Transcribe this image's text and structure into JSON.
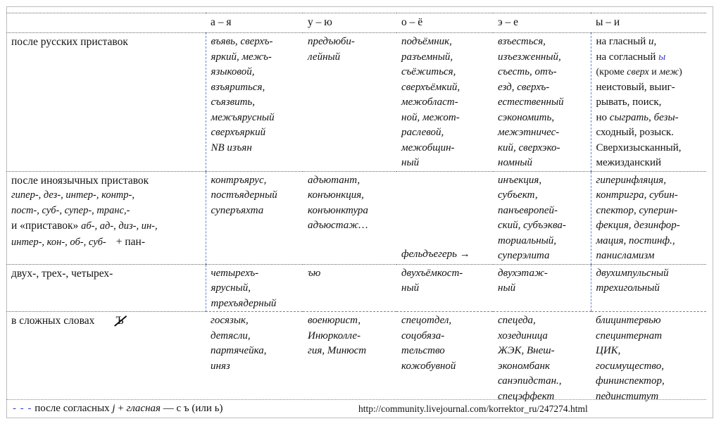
{
  "header": {
    "col_a": "а – я",
    "col_u": "у – ю",
    "col_o": "о – ё",
    "col_e": "э – е",
    "col_y": "ы – и"
  },
  "rows": {
    "russian": {
      "label": "после русских приставок",
      "a": [
        "въявь, сверхъ-",
        "яркий, межъ-",
        "языковой,",
        "взъяриться,",
        "съязвить,",
        "межъярусный",
        "сверхъяркий",
        "NB изъян"
      ],
      "u": [
        "предъюби-",
        "лейный"
      ],
      "o": [
        "подъёмник,",
        "разъемный,",
        "съёжиться,",
        "сверхъёмкий,",
        "межобласт-",
        "ной, межот-",
        "раслевой,",
        "межобщин-",
        "ный"
      ],
      "e": [
        "взъесться,",
        "изъезженный,",
        "съесть, отъ-",
        "езд, сверхъ-",
        "естественный",
        "сэкономить,",
        "межэтничес-",
        "кий, сверхэко-",
        "номный"
      ],
      "y": {
        "l1_a": "на гласный ",
        "l1_b": "и,",
        "l2_a": "на согласный ",
        "l2_b": "ы",
        "l3_a": "(кроме ",
        "l3_b": "сверх",
        "l3_c": " и ",
        "l3_d": "меж",
        "l3_e": ")",
        "rest": [
          "неистовый, выиг-",
          "рывать, поиск,"
        ],
        "l6_a": "но ",
        "l6_b": "сыграть, безы-",
        "rest2": [
          "сходный, розыск.",
          "Сверхизысканный,",
          "межизданский"
        ]
      }
    },
    "foreign": {
      "label": "после иноязычных приставок",
      "sub1": "гипер-, дез-, интер-, контр-,",
      "sub2": "пост-, суб-, супер-, транс,-",
      "sub3_a": "и «приставок» ",
      "sub3_b": "аб-, ад-, диз-, ин-,",
      "sub4": "интер-, кон-, об-, суб-",
      "sub4_plus": "+ пан-",
      "a": [
        "контръярус,",
        "постъядерный",
        "суперъяхта"
      ],
      "u": [
        "адъютант,",
        "конъюнкция,",
        "конъюнктура",
        "адъюстаж…"
      ],
      "o": "фельдъегерь →",
      "e": [
        "инъекция,",
        "субъект,",
        "панъевропей-",
        "ский, субъэква-",
        "ториальный,",
        "суперэлита"
      ],
      "y": [
        "гиперинфляция,",
        "контригра, субин-",
        "спектор, суперин-",
        "фекция, дезинфор-",
        "мация, постинф.,",
        "панисламизм"
      ]
    },
    "numeric": {
      "label": "двух-, трех-, четырех-",
      "a": [
        "четырехъ-",
        "ярусный,",
        "трехъядерный"
      ],
      "u": [
        "ъю"
      ],
      "o": [
        "двухъёмкост-",
        "ный"
      ],
      "e": [
        "двухэтаж-",
        "ный"
      ],
      "y": [
        "двухимпульсный",
        "трехигольный"
      ]
    },
    "compound": {
      "label": "в сложных словах",
      "struck_letter": "Ъ",
      "a": [
        "госязык,",
        "детясли,",
        "партячейка,",
        "иняз"
      ],
      "u": [
        "военюрист,",
        "Инюрколле-",
        "гия, Минюст"
      ],
      "o": [
        "спецотдел,",
        "соцобяза-",
        "тельство",
        "кожобувной"
      ],
      "e": [
        "спецеда,",
        "хозединица",
        "ЖЭК, Внеш-",
        "экономбанк",
        "санэпидстан.,",
        "спецэффект"
      ],
      "y": [
        "блицинтервью",
        "специнтернат",
        "ЦИК,",
        "госимущество,",
        "фининспектор,",
        "пединститут"
      ]
    }
  },
  "footer": {
    "dash": "- - -",
    "text_a": " после согласных ",
    "text_j": "j",
    "text_b": " + ",
    "text_vowel": "гласная",
    "text_c": " — с ъ (или ь)",
    "url": "http://community.livejournal.com/korrektor_ru/247274.html"
  }
}
